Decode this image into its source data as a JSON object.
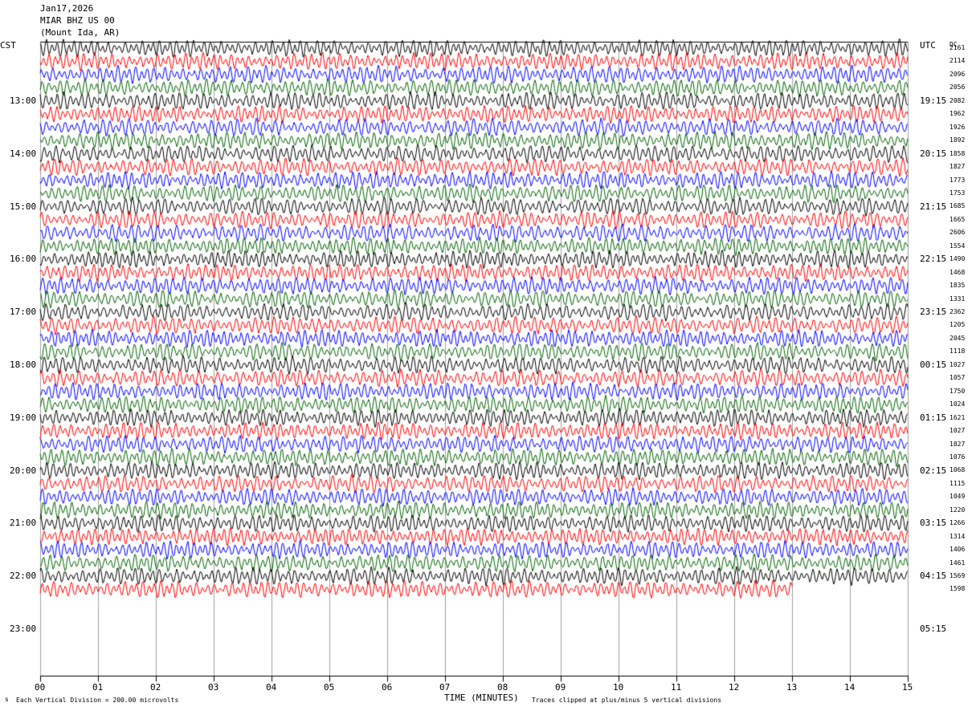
{
  "header": {
    "date": "Jan17,2026",
    "station": "MIAR BHZ US 00",
    "location": "(Mount Ida, AR)"
  },
  "left_axis_label": "CST",
  "right_axis_label": "UTC",
  "dc_header": "DC",
  "footer": {
    "scale_note": "Each Vertical Division =  200.00 microvolts",
    "x_title": "TIME (MINUTES)",
    "clip_note": "Traces clipped at plus/minus 5 vertical divisions",
    "corner_mark": "s"
  },
  "colors": {
    "trace_cycle": [
      "#000000",
      "#ff0000",
      "#0000ff",
      "#006400"
    ],
    "grid": "#a0a0a0",
    "background": "#ffffff"
  },
  "chart_data": {
    "type": "line",
    "description_of_layout": "helicorder",
    "xlabel": "TIME (MINUTES)",
    "xlim": [
      0,
      15
    ],
    "x_ticks": [
      "00",
      "01",
      "02",
      "03",
      "04",
      "05",
      "06",
      "07",
      "08",
      "09",
      "10",
      "11",
      "12",
      "13",
      "14",
      "15"
    ],
    "left_ticks": [
      "13:00",
      "14:00",
      "15:00",
      "16:00",
      "17:00",
      "18:00",
      "19:00",
      "20:00",
      "21:00",
      "22:00",
      "23:00"
    ],
    "right_ticks": [
      "19:15",
      "20:15",
      "21:15",
      "22:15",
      "23:15",
      "00:15",
      "01:15",
      "02:15",
      "03:15",
      "04:15",
      "05:15"
    ],
    "dc_offsets": [
      "2161",
      "2114",
      "2096",
      "2056",
      "2082",
      "1962",
      "1926",
      "1892",
      "1858",
      "1827",
      "1773",
      "1753",
      "1685",
      "1665",
      "2606",
      "1554",
      "1490",
      "1468",
      "1835",
      "1331",
      "2362",
      "1205",
      "2045",
      "1118",
      "1027",
      "1057",
      "1750",
      "1024",
      "1621",
      "1027",
      "1827",
      "1076",
      "1068",
      "1115",
      "1049",
      "1220",
      "1266",
      "1314",
      "1406",
      "1461",
      "1569",
      "1598"
    ],
    "traces_count": 42,
    "last_trace_end_minute": 13.0,
    "clip_divisions": 5,
    "vertical_division_microvolts": 200.0
  }
}
